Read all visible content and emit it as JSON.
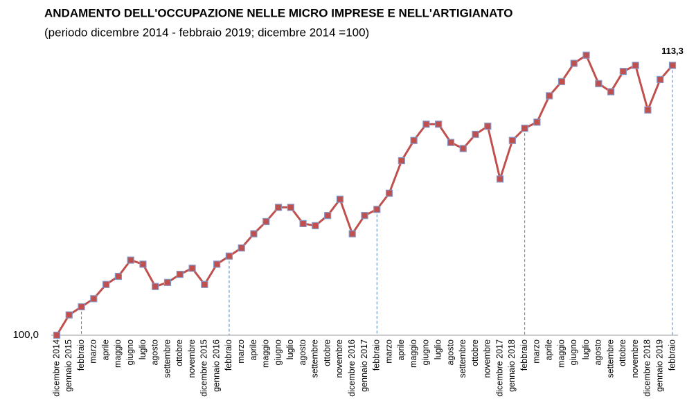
{
  "chart_data": {
    "type": "line",
    "title": "ANDAMENTO DELL'OCCUPAZIONE NELLE MICRO IMPRESE E NELL'ARTIGIANATO",
    "subtitle": "(periodo dicembre 2014 - febbraio 2019; dicembre 2014 =100)",
    "categories": [
      "dicembre 2014",
      "gennaio 2015",
      "febbraio",
      "marzo",
      "aprile",
      "maggio",
      "giugno",
      "luglio",
      "agosto",
      "settembre",
      "ottobre",
      "novembre",
      "dicembre 2015",
      "gennaio 2016",
      "febbraio",
      "marzo",
      "aprile",
      "maggio",
      "giugno",
      "luglio",
      "agosto",
      "settembre",
      "ottobre",
      "novembre",
      "dicembre 2016",
      "gennaio 2017",
      "febbraio",
      "marzo",
      "aprile",
      "maggio",
      "giugno",
      "luglio",
      "agosto",
      "settembre",
      "ottobre",
      "novembre",
      "dicembre 2017",
      "gennaio 2018",
      "febbraio",
      "marzo",
      "aprile",
      "maggio",
      "giugno",
      "luglio",
      "agosto",
      "settembre",
      "ottobre",
      "novembre",
      "dicembre 2018",
      "gennaio 2019",
      "febbraio"
    ],
    "values": [
      100.0,
      101.0,
      101.4,
      101.8,
      102.5,
      102.9,
      103.7,
      103.5,
      102.4,
      102.6,
      103.0,
      103.3,
      102.5,
      103.5,
      103.9,
      104.3,
      105.0,
      105.6,
      106.3,
      106.3,
      105.5,
      105.4,
      105.9,
      106.7,
      105.0,
      105.9,
      106.2,
      107.0,
      108.6,
      109.6,
      110.4,
      110.4,
      109.5,
      109.2,
      109.9,
      110.3,
      107.7,
      109.6,
      110.2,
      110.5,
      111.8,
      112.5,
      113.4,
      113.8,
      112.4,
      112.0,
      113.0,
      113.3,
      111.1,
      112.6,
      113.3
    ],
    "value_labels": [
      null,
      null,
      null,
      null,
      null,
      null,
      null,
      null,
      null,
      null,
      null,
      null,
      null,
      null,
      null,
      null,
      null,
      null,
      null,
      null,
      null,
      null,
      null,
      null,
      null,
      null,
      null,
      null,
      null,
      null,
      null,
      null,
      null,
      null,
      null,
      null,
      null,
      null,
      null,
      null,
      null,
      null,
      null,
      null,
      null,
      null,
      null,
      null,
      null,
      null,
      "113,3"
    ],
    "color": "#c0504d",
    "marker_edge": "#8497c9",
    "ylim": [
      100,
      114.2
    ],
    "yticks": [
      {
        "value": 100,
        "label": "100,0"
      }
    ]
  }
}
